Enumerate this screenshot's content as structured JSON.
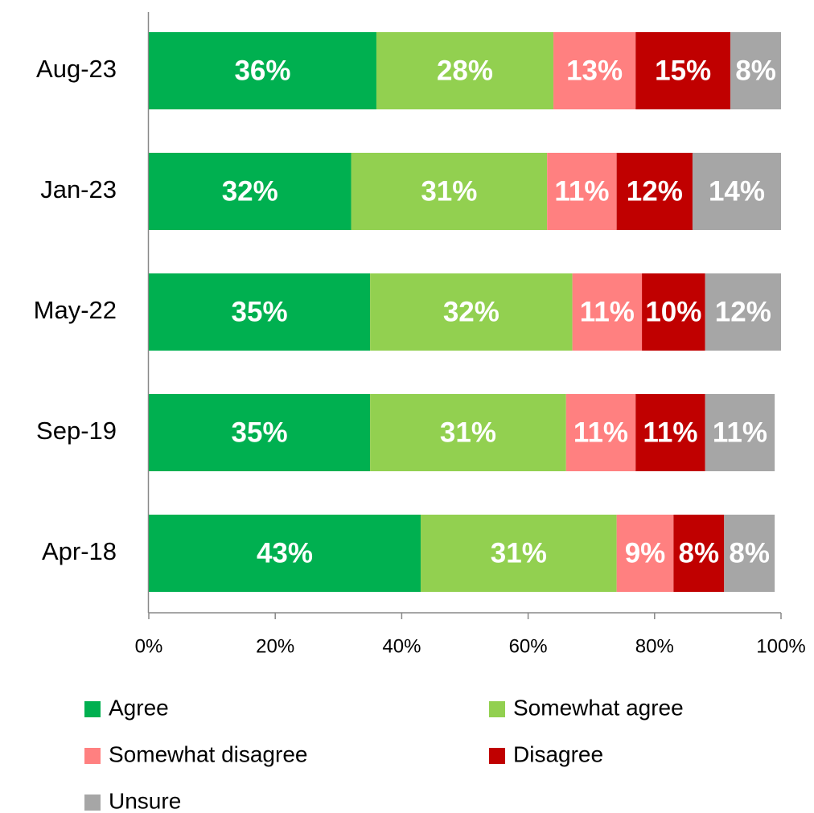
{
  "chart_data": {
    "type": "bar",
    "orientation": "horizontal",
    "stacked": true,
    "categories": [
      "Aug-23",
      "Jan-23",
      "May-22",
      "Sep-19",
      "Apr-18"
    ],
    "series": [
      {
        "name": "Agree",
        "color": "#00b050",
        "values": [
          36,
          32,
          35,
          35,
          43
        ],
        "value_labels": [
          "36%",
          "32%",
          "35%",
          "35%",
          "43%"
        ]
      },
      {
        "name": "Somewhat agree",
        "color": "#92d050",
        "values": [
          28,
          31,
          32,
          31,
          31
        ],
        "value_labels": [
          "28%",
          "31%",
          "32%",
          "31%",
          "31%"
        ]
      },
      {
        "name": "Somewhat disagree",
        "color": "#ff8080",
        "values": [
          13,
          11,
          11,
          11,
          9
        ],
        "value_labels": [
          "13%",
          "11%",
          "11%",
          "11%",
          "9%"
        ]
      },
      {
        "name": "Disagree",
        "color": "#c00000",
        "values": [
          15,
          12,
          10,
          11,
          8
        ],
        "value_labels": [
          "15%",
          "12%",
          "10%",
          "11%",
          "8%"
        ]
      },
      {
        "name": "Unsure",
        "color": "#a6a6a6",
        "values": [
          8,
          14,
          12,
          11,
          8
        ],
        "value_labels": [
          "8%",
          "14%",
          "12%",
          "11%",
          "8%"
        ]
      }
    ],
    "xlim": [
      0,
      100
    ],
    "xticks": [
      {
        "value": 0,
        "label": "0%"
      },
      {
        "value": 20,
        "label": "20%"
      },
      {
        "value": 40,
        "label": "40%"
      },
      {
        "value": 60,
        "label": "60%"
      },
      {
        "value": 80,
        "label": "80%"
      },
      {
        "value": 100,
        "label": "100%"
      }
    ],
    "legend": "bottom"
  }
}
